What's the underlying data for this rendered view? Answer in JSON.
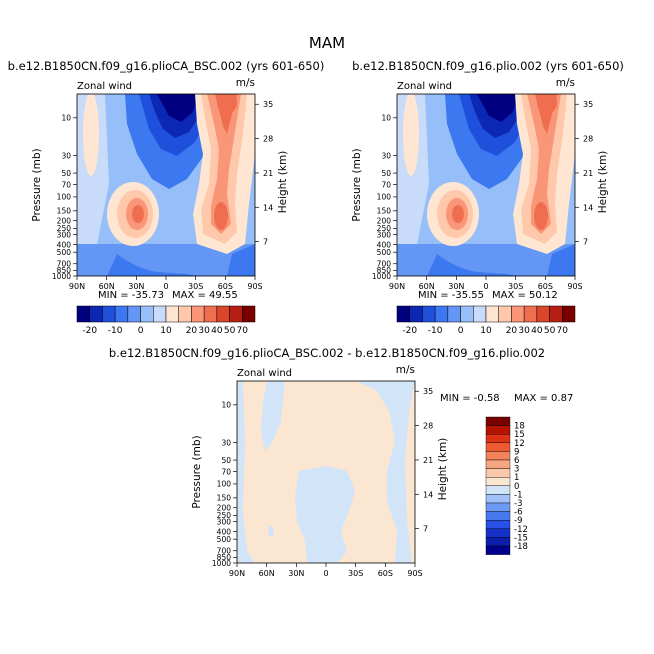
{
  "title": "MAM",
  "colors": {
    "left_palette": [
      "#000080",
      "#0a28b4",
      "#1e50dc",
      "#3c78f0",
      "#6496f5",
      "#96bef8",
      "#c8dcfa",
      "#ffe6d2",
      "#ffc8aa",
      "#fa9678",
      "#f06e50",
      "#dc4628",
      "#b41e14",
      "#7a0000"
    ],
    "diff_palette": [
      "#00008c",
      "#0a1eaa",
      "#1432c8",
      "#2850e6",
      "#4678f0",
      "#6e9af5",
      "#a0c2f8",
      "#d2e4f8",
      "#fbe6d2",
      "#fac8aa",
      "#f8a682",
      "#f4825a",
      "#ee5a32",
      "#de3214",
      "#b41400",
      "#780000"
    ]
  },
  "chart_data": [
    {
      "type": "heatmap",
      "panel": "left",
      "title": "b.e12.B1850CN.f09_g16.plioCA_BSC.002 (yrs 601-650)",
      "variable": "Zonal wind",
      "units": "m/s",
      "ylabel": "Pressure (mb)",
      "ylabel_right": "Height (km)",
      "x_ticks": [
        "90N",
        "60N",
        "30N",
        "0",
        "30S",
        "60S",
        "90S"
      ],
      "y_ticks": [
        "10",
        "30",
        "50",
        "70",
        "100",
        "150",
        "200",
        "250",
        "300",
        "400",
        "500",
        "700",
        "850",
        "1000"
      ],
      "y_ticks_right": [
        "35",
        "28",
        "21",
        "14",
        "7"
      ],
      "min_label": "MIN = -35.73",
      "max_label": "MAX = 49.55",
      "min": -35.73,
      "max": 49.55,
      "colorbar_levels": [
        "-20",
        "-10",
        "0",
        "10",
        "20",
        "30",
        "40",
        "50",
        "70"
      ]
    },
    {
      "type": "heatmap",
      "panel": "right",
      "title": "b.e12.B1850CN.f09_g16.plio.002 (yrs 601-650)",
      "variable": "Zonal wind",
      "units": "m/s",
      "ylabel": "Pressure (mb)",
      "ylabel_right": "Height (km)",
      "x_ticks": [
        "90N",
        "60N",
        "30N",
        "0",
        "30S",
        "60S",
        "90S"
      ],
      "y_ticks": [
        "10",
        "30",
        "50",
        "70",
        "100",
        "150",
        "200",
        "250",
        "300",
        "400",
        "500",
        "700",
        "850",
        "1000"
      ],
      "y_ticks_right": [
        "35",
        "28",
        "21",
        "14",
        "7"
      ],
      "min_label": "MIN = -35.55",
      "max_label": "MAX = 50.12",
      "min": -35.55,
      "max": 50.12,
      "colorbar_levels": [
        "-20",
        "-10",
        "0",
        "10",
        "20",
        "30",
        "40",
        "50",
        "70"
      ]
    },
    {
      "type": "heatmap",
      "panel": "difference",
      "title": "b.e12.B1850CN.f09_g16.plioCA_BSC.002 - b.e12.B1850CN.f09_g16.plio.002",
      "variable": "Zonal wind",
      "units": "m/s",
      "ylabel": "Pressure (mb)",
      "ylabel_right": "Height (km)",
      "x_ticks": [
        "90N",
        "60N",
        "30N",
        "0",
        "30S",
        "60S",
        "90S"
      ],
      "y_ticks": [
        "10",
        "30",
        "50",
        "70",
        "100",
        "150",
        "200",
        "250",
        "300",
        "400",
        "500",
        "700",
        "850",
        "1000"
      ],
      "y_ticks_right": [
        "35",
        "28",
        "21",
        "14",
        "7"
      ],
      "min_label": "MIN = -0.58",
      "max_label": "MAX = 0.87",
      "min": -0.58,
      "max": 0.87,
      "colorbar_levels": [
        "18",
        "15",
        "12",
        "9",
        "6",
        "3",
        "1",
        "0",
        "-1",
        "-3",
        "-6",
        "-9",
        "-12",
        "-15",
        "-18"
      ]
    }
  ]
}
